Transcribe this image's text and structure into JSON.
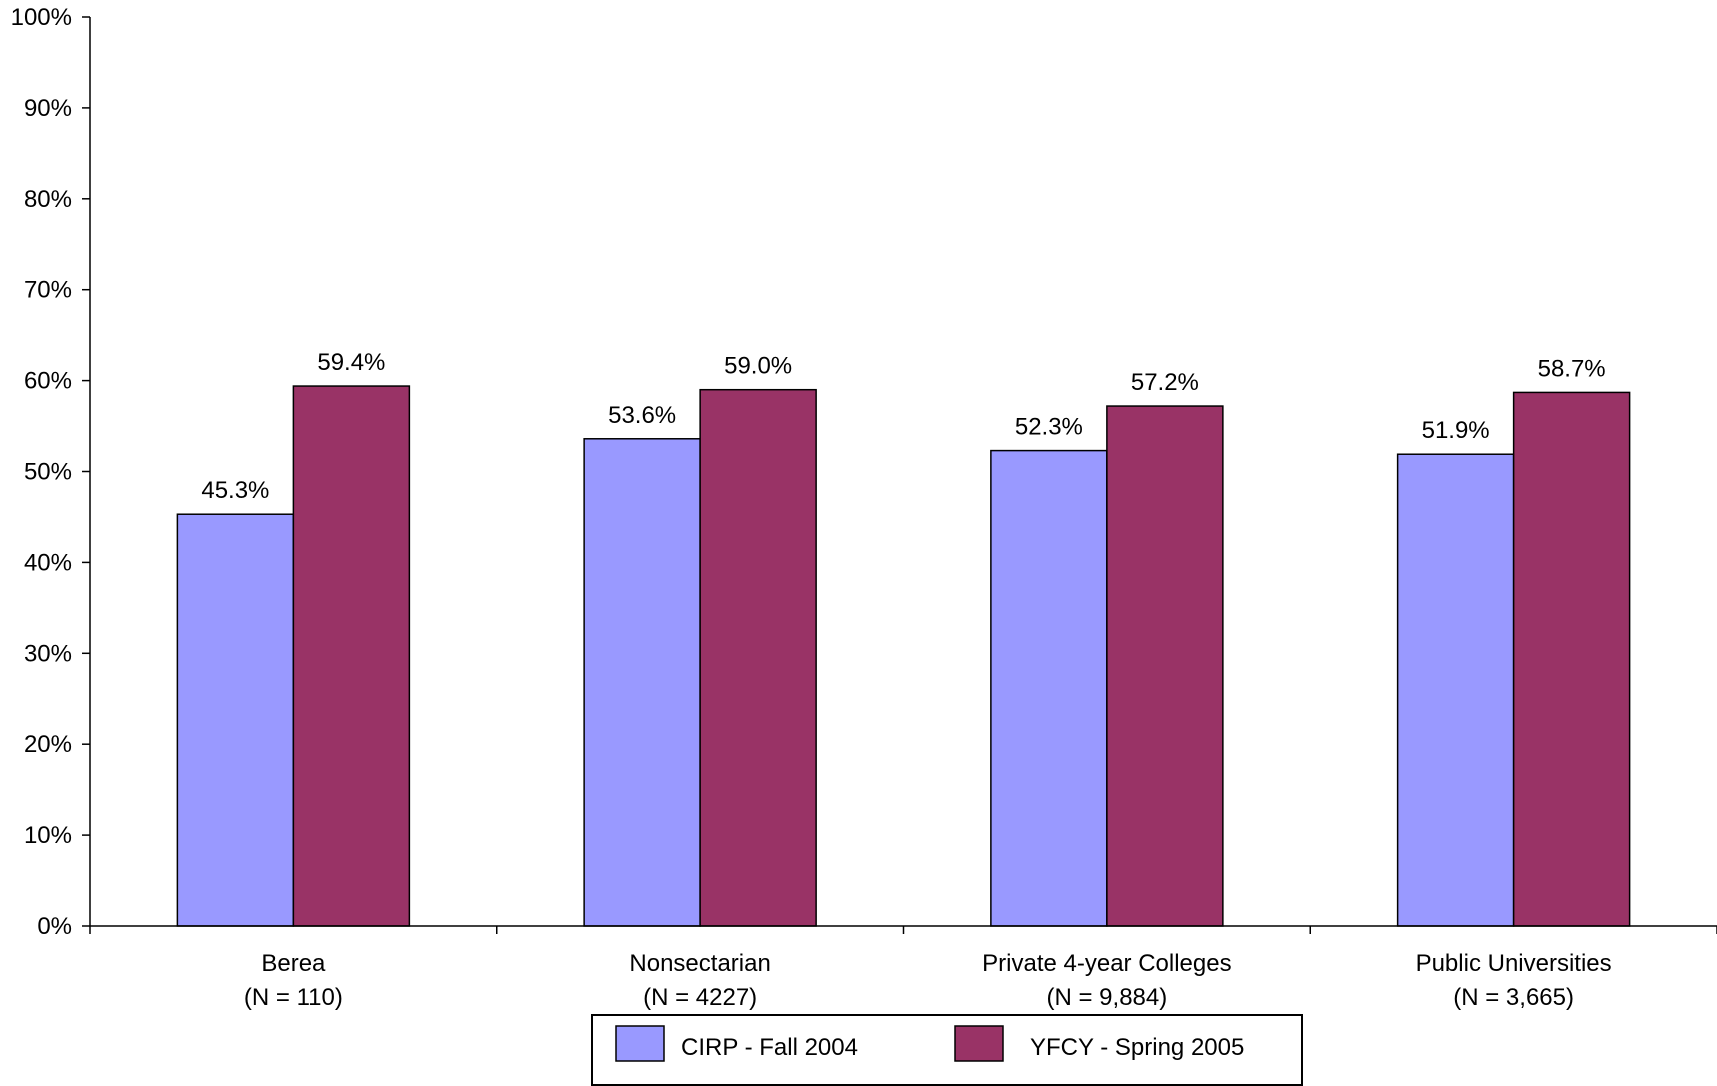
{
  "chart_data": {
    "type": "bar",
    "title": "",
    "xlabel": "",
    "ylabel": "",
    "ylim": [
      0,
      100
    ],
    "y_ticks": [
      0,
      10,
      20,
      30,
      40,
      50,
      60,
      70,
      80,
      90,
      100
    ],
    "y_tick_format": "percent",
    "grid": false,
    "legend_position": "bottom",
    "categories": [
      {
        "name": "Berea",
        "n": "(N = 110)"
      },
      {
        "name": "Nonsectarian",
        "n": "(N = 4227)"
      },
      {
        "name": "Private 4-year Colleges",
        "n": "(N = 9,884)"
      },
      {
        "name": "Public Universities",
        "n": "(N = 3,665)"
      }
    ],
    "series": [
      {
        "name": "CIRP - Fall 2004",
        "color": "#9999ff",
        "values": [
          45.3,
          53.6,
          52.3,
          51.9
        ],
        "labels": [
          "45.3%",
          "53.6%",
          "52.3%",
          "51.9%"
        ]
      },
      {
        "name": "YFCY - Spring 2005",
        "color": "#993366",
        "values": [
          59.4,
          59.0,
          57.2,
          58.7
        ],
        "labels": [
          "59.4%",
          "59.0%",
          "57.2%",
          "58.7%"
        ]
      }
    ]
  }
}
